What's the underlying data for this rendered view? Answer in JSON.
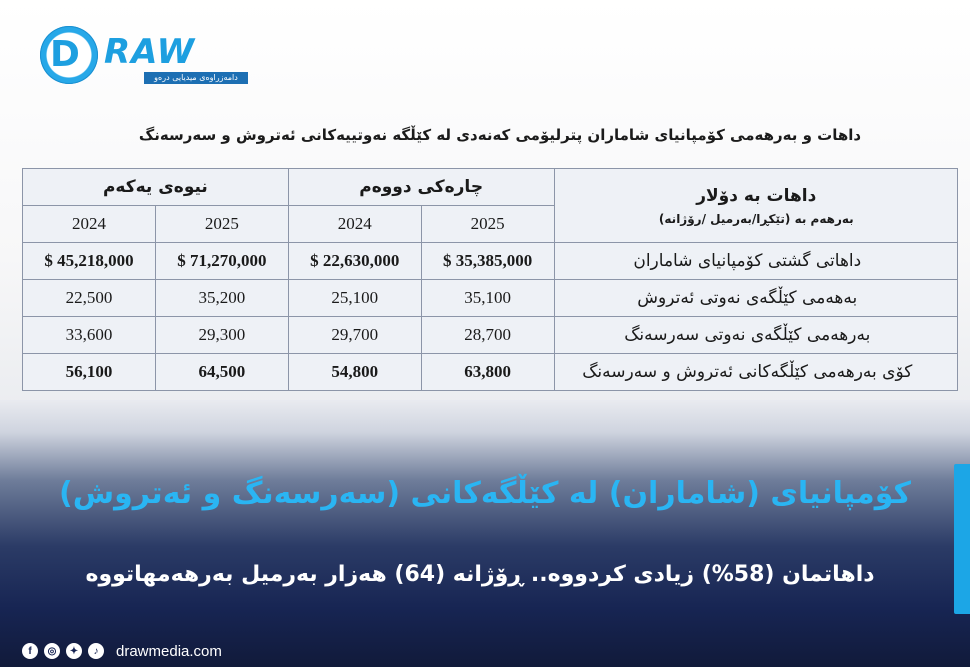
{
  "brand": {
    "logo_letter": "D",
    "logo_word": "RAW",
    "tagline": "دامەزراوەی میدیایی درەو",
    "accent": "#1d9fe0"
  },
  "table": {
    "title": "داهات و بەرهەمی كۆمپانیای شاماران پترلیۆمی كەنەدی لە كێڵگە نەوتییەكانی ئەتروش و سەرسەنگ",
    "header": {
      "label_line1": "داهات بە دۆلار",
      "label_line2": "بەرهەم بە (تێكڕا/بەرمیل /رۆژانە)",
      "group_q2": "چارەكی دووەم",
      "group_h1": "نیوەی یەكەم",
      "year_2025": "2025",
      "year_2024": "2024"
    },
    "rows": [
      {
        "label": "داهاتی گشتی كۆمپانیای شاماران",
        "q2_2025": "$ 35,385,000",
        "q2_2024": "$ 22,630,000",
        "h1_2025": "$ 71,270,000",
        "h1_2024": "$ 45,218,000"
      },
      {
        "label": "بەهەمی كێڵگەی نەوتی ئەتروش",
        "q2_2025": "35,100",
        "q2_2024": "25,100",
        "h1_2025": "35,200",
        "h1_2024": "22,500"
      },
      {
        "label": "بەرهەمی كێڵگەی نەوتی سەرسەنگ",
        "q2_2025": "28,700",
        "q2_2024": "29,700",
        "h1_2025": "29,300",
        "h1_2024": "33,600"
      },
      {
        "label": "كۆی بەرهەمی كێڵگەكانی ئەتروش و سەرسەنگ",
        "q2_2025": "63,800",
        "q2_2024": "54,800",
        "h1_2025": "64,500",
        "h1_2024": "56,100"
      }
    ]
  },
  "headline": "كۆمپانیای (شاماران) لە كێڵگەكانی (سەرسەنگ و ئەتروش)",
  "subline": "داهاتمان (58%) زیادی كردووە.. ڕۆژانە (64) هەزار  بەرمیل بەرهەمهاتووە",
  "footer": {
    "social": [
      "f",
      "ig",
      "tw",
      "tt"
    ],
    "site": "drawmedia.com"
  },
  "colors": {
    "headline": "#2ab5f3",
    "right_bar": "#1ca6e6",
    "bg_dark": "#152252"
  }
}
